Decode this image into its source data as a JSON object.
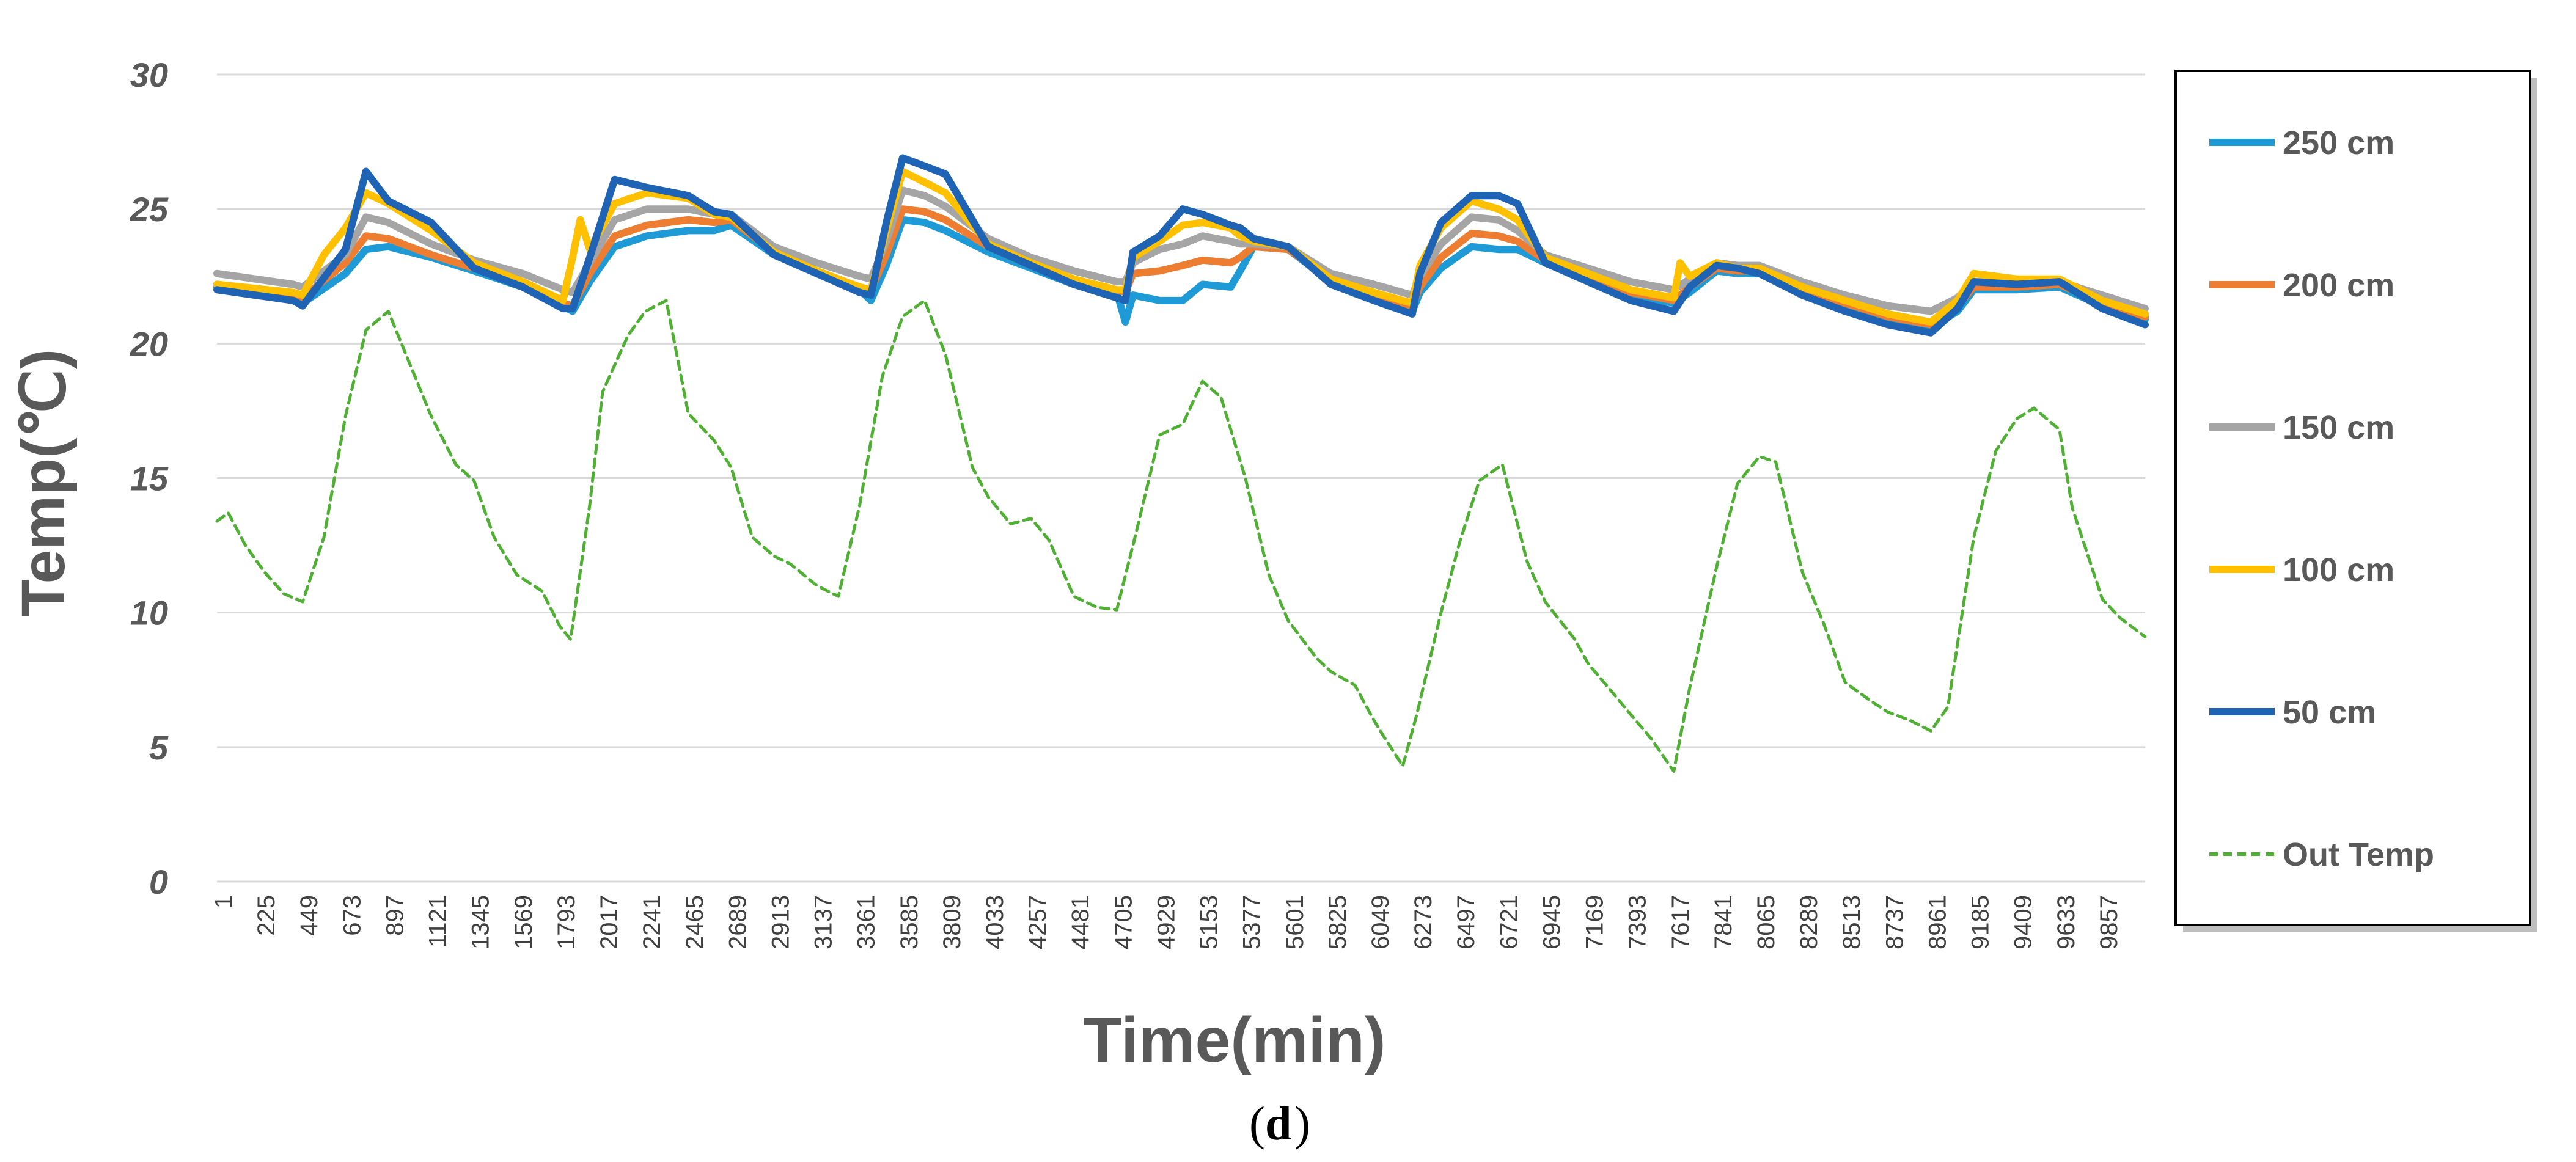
{
  "chart_data": {
    "type": "line",
    "title": "",
    "xlabel": "Time(min)",
    "ylabel": "Temp(℃)",
    "caption_letter": "d",
    "ylim": [
      0,
      30
    ],
    "xlim": [
      1,
      10081
    ],
    "yticks": [
      "0",
      "5",
      "10",
      "15",
      "20",
      "25",
      "30"
    ],
    "xticks": [
      "1",
      "225",
      "449",
      "673",
      "897",
      "1121",
      "1345",
      "1569",
      "1793",
      "2017",
      "2241",
      "2465",
      "2689",
      "2913",
      "3137",
      "3361",
      "3585",
      "3809",
      "4033",
      "4257",
      "4481",
      "4705",
      "4929",
      "5153",
      "5377",
      "5601",
      "5825",
      "6049",
      "6273",
      "6497",
      "6721",
      "6945",
      "7169",
      "7393",
      "7617",
      "7841",
      "8065",
      "8289",
      "8513",
      "8737",
      "8961",
      "9185",
      "9409",
      "9633",
      "9857"
    ],
    "grid": true,
    "legend_position": "right",
    "series": [
      {
        "name": "250 cm",
        "color": "#1E9BD7",
        "dash": false,
        "x": [
          1,
          400,
          449,
          673,
          780,
          897,
          1121,
          1345,
          1600,
          1810,
          1860,
          1950,
          2080,
          2250,
          2465,
          2600,
          2689,
          2913,
          3137,
          3361,
          3420,
          3500,
          3585,
          3700,
          3809,
          4033,
          4257,
          4481,
          4705,
          4750,
          4790,
          4929,
          5050,
          5153,
          5300,
          5350,
          5420,
          5601,
          5825,
          6049,
          6250,
          6290,
          6400,
          6560,
          6700,
          6800,
          6945,
          7169,
          7393,
          7617,
          7700,
          7841,
          7950,
          8065,
          8289,
          8513,
          8737,
          8961,
          9100,
          9185,
          9409,
          9633,
          9857,
          10081
        ],
        "y": [
          22.1,
          21.7,
          21.5,
          22.6,
          23.5,
          23.6,
          23.2,
          22.7,
          22.1,
          21.4,
          21.2,
          22.3,
          23.6,
          24.0,
          24.2,
          24.2,
          24.4,
          23.3,
          22.6,
          22.0,
          21.6,
          22.9,
          24.6,
          24.5,
          24.2,
          23.4,
          22.8,
          22.2,
          21.9,
          20.8,
          21.8,
          21.6,
          21.6,
          22.2,
          22.1,
          22.7,
          23.6,
          23.5,
          22.3,
          21.7,
          21.2,
          21.9,
          22.8,
          23.6,
          23.5,
          23.5,
          23.0,
          22.4,
          21.8,
          21.5,
          21.9,
          22.7,
          22.6,
          22.6,
          21.9,
          21.4,
          20.9,
          20.6,
          21.2,
          22.0,
          22.0,
          22.1,
          21.4,
          20.9
        ]
      },
      {
        "name": "200 cm",
        "color": "#ED7D31",
        "dash": false,
        "x": [
          1,
          400,
          449,
          673,
          780,
          897,
          1121,
          1345,
          1600,
          1810,
          1860,
          1950,
          2080,
          2250,
          2465,
          2600,
          2689,
          2913,
          3137,
          3361,
          3420,
          3500,
          3585,
          3700,
          3809,
          4033,
          4257,
          4481,
          4705,
          4750,
          4790,
          4929,
          5050,
          5153,
          5300,
          5350,
          5420,
          5601,
          5825,
          6049,
          6250,
          6290,
          6400,
          6560,
          6700,
          6800,
          6945,
          7169,
          7393,
          7617,
          7700,
          7841,
          7950,
          8065,
          8289,
          8513,
          8737,
          8961,
          9100,
          9185,
          9409,
          9633,
          9857,
          10081
        ],
        "y": [
          22.2,
          21.8,
          21.7,
          23.0,
          24.0,
          23.9,
          23.3,
          22.8,
          22.2,
          21.5,
          21.4,
          22.6,
          24.0,
          24.4,
          24.6,
          24.5,
          24.6,
          23.4,
          22.7,
          22.1,
          22.0,
          23.3,
          25.0,
          24.9,
          24.6,
          23.6,
          22.9,
          22.3,
          22.0,
          21.9,
          22.6,
          22.7,
          22.9,
          23.1,
          23.0,
          23.2,
          23.6,
          23.5,
          22.4,
          21.8,
          21.4,
          22.1,
          23.2,
          24.1,
          24.0,
          23.8,
          23.1,
          22.5,
          21.9,
          21.6,
          22.1,
          22.8,
          22.7,
          22.7,
          22.0,
          21.5,
          21.0,
          20.7,
          21.4,
          22.1,
          22.1,
          22.2,
          21.5,
          21.0
        ]
      },
      {
        "name": "150 cm",
        "color": "#A5A5A5",
        "dash": false,
        "x": [
          1,
          400,
          449,
          673,
          780,
          897,
          1121,
          1345,
          1600,
          1810,
          1860,
          1950,
          2080,
          2250,
          2465,
          2600,
          2689,
          2913,
          3137,
          3361,
          3420,
          3500,
          3585,
          3700,
          3809,
          4033,
          4257,
          4481,
          4705,
          4750,
          4790,
          4929,
          5050,
          5153,
          5300,
          5350,
          5420,
          5601,
          5825,
          6049,
          6250,
          6290,
          6400,
          6560,
          6700,
          6800,
          6945,
          7169,
          7393,
          7617,
          7700,
          7841,
          7950,
          8065,
          8289,
          8513,
          8737,
          8961,
          9100,
          9185,
          9409,
          9633,
          9857,
          10081
        ],
        "y": [
          22.6,
          22.2,
          22.1,
          23.3,
          24.7,
          24.5,
          23.7,
          23.1,
          22.6,
          22.0,
          21.9,
          23.0,
          24.6,
          25.0,
          25.0,
          24.8,
          24.8,
          23.6,
          23.0,
          22.5,
          22.4,
          23.8,
          25.7,
          25.5,
          25.1,
          23.9,
          23.2,
          22.7,
          22.3,
          22.3,
          23.0,
          23.5,
          23.7,
          24.0,
          23.8,
          23.7,
          23.7,
          23.6,
          22.6,
          22.2,
          21.8,
          22.5,
          23.7,
          24.7,
          24.6,
          24.2,
          23.3,
          22.8,
          22.3,
          22.0,
          22.4,
          23.0,
          22.9,
          22.9,
          22.3,
          21.8,
          21.4,
          21.2,
          21.7,
          22.3,
          22.3,
          22.3,
          21.8,
          21.3
        ]
      },
      {
        "name": "100 cm",
        "color": "#FFC000",
        "dash": false,
        "x": [
          1,
          400,
          449,
          560,
          673,
          780,
          897,
          1121,
          1345,
          1600,
          1810,
          1860,
          1900,
          1950,
          2080,
          2250,
          2465,
          2600,
          2689,
          2913,
          3137,
          3361,
          3420,
          3500,
          3585,
          3700,
          3809,
          4033,
          4257,
          4481,
          4705,
          4750,
          4790,
          4929,
          5050,
          5153,
          5300,
          5350,
          5420,
          5601,
          5825,
          6049,
          6250,
          6290,
          6400,
          6560,
          6700,
          6800,
          6945,
          7169,
          7393,
          7617,
          7650,
          7700,
          7841,
          7950,
          8065,
          8289,
          8513,
          8737,
          8961,
          9100,
          9185,
          9409,
          9633,
          9857,
          10081
        ],
        "y": [
          22.2,
          21.9,
          21.8,
          23.3,
          24.3,
          25.6,
          25.2,
          24.2,
          23.0,
          22.3,
          21.6,
          23.2,
          24.6,
          23.5,
          25.2,
          25.6,
          25.4,
          24.8,
          24.7,
          23.4,
          22.7,
          22.1,
          22.0,
          24.2,
          26.4,
          26.0,
          25.6,
          23.7,
          23.0,
          22.4,
          22.0,
          22.0,
          23.2,
          23.8,
          24.4,
          24.5,
          24.3,
          24.0,
          23.8,
          23.6,
          22.4,
          21.9,
          21.5,
          22.9,
          24.3,
          25.3,
          25.0,
          24.6,
          23.2,
          22.6,
          22.0,
          21.7,
          23.0,
          22.5,
          23.0,
          22.8,
          22.8,
          22.1,
          21.6,
          21.1,
          20.8,
          21.6,
          22.6,
          22.4,
          22.4,
          21.6,
          21.1
        ]
      },
      {
        "name": "50 cm",
        "color": "#1F64B4",
        "dash": false,
        "x": [
          1,
          400,
          449,
          673,
          780,
          897,
          1121,
          1345,
          1600,
          1810,
          1860,
          1950,
          2080,
          2250,
          2465,
          2600,
          2689,
          2913,
          3137,
          3361,
          3420,
          3500,
          3585,
          3700,
          3809,
          4033,
          4257,
          4481,
          4705,
          4750,
          4790,
          4929,
          5050,
          5153,
          5300,
          5350,
          5420,
          5601,
          5825,
          6049,
          6250,
          6290,
          6400,
          6560,
          6700,
          6800,
          6945,
          7169,
          7393,
          7617,
          7700,
          7841,
          7950,
          8065,
          8289,
          8513,
          8737,
          8961,
          9100,
          9185,
          9409,
          9633,
          9857,
          10081
        ],
        "y": [
          22.0,
          21.6,
          21.4,
          23.5,
          26.4,
          25.3,
          24.5,
          22.8,
          22.1,
          21.3,
          21.3,
          23.2,
          26.1,
          25.8,
          25.5,
          24.9,
          24.8,
          23.3,
          22.6,
          21.9,
          21.8,
          24.5,
          26.9,
          26.6,
          26.3,
          23.6,
          22.9,
          22.2,
          21.7,
          21.6,
          23.4,
          24.0,
          25.0,
          24.8,
          24.4,
          24.3,
          23.9,
          23.6,
          22.2,
          21.6,
          21.1,
          22.6,
          24.5,
          25.5,
          25.5,
          25.2,
          23.0,
          22.3,
          21.6,
          21.2,
          22.1,
          22.9,
          22.8,
          22.6,
          21.8,
          21.2,
          20.7,
          20.4,
          21.3,
          22.3,
          22.2,
          22.3,
          21.3,
          20.7
        ]
      },
      {
        "name": "Out Temp",
        "color": "#4FB034",
        "dash": true,
        "x": [
          1,
          60,
          150,
          250,
          350,
          449,
          560,
          673,
          780,
          897,
          1000,
          1121,
          1250,
          1345,
          1450,
          1569,
          1700,
          1793,
          1850,
          1950,
          2017,
          2150,
          2241,
          2350,
          2465,
          2600,
          2689,
          2800,
          2913,
          3000,
          3137,
          3250,
          3361,
          3480,
          3585,
          3700,
          3809,
          3950,
          4033,
          4150,
          4257,
          4350,
          4481,
          4600,
          4705,
          4800,
          4929,
          5050,
          5153,
          5250,
          5377,
          5500,
          5601,
          5750,
          5825,
          5950,
          6049,
          6100,
          6200,
          6273,
          6400,
          6497,
          6600,
          6721,
          6850,
          6945,
          7100,
          7169,
          7300,
          7393,
          7500,
          7617,
          7700,
          7841,
          7950,
          8065,
          8150,
          8289,
          8400,
          8513,
          8650,
          8737,
          8850,
          8961,
          9050,
          9185,
          9300,
          9409,
          9500,
          9633,
          9700,
          9857,
          9950,
          10081
        ],
        "y": [
          13.4,
          13.7,
          12.5,
          11.5,
          10.7,
          10.4,
          12.8,
          17.3,
          20.5,
          21.2,
          19.4,
          17.3,
          15.5,
          14.9,
          12.8,
          11.4,
          10.8,
          9.5,
          9.0,
          14.0,
          18.2,
          20.3,
          21.2,
          21.6,
          17.4,
          16.4,
          15.4,
          12.8,
          12.1,
          11.8,
          11.0,
          10.6,
          14.0,
          18.8,
          21.0,
          21.6,
          19.6,
          15.4,
          14.3,
          13.3,
          13.5,
          12.7,
          10.6,
          10.2,
          10.1,
          12.8,
          16.6,
          17.0,
          18.6,
          18.0,
          15.0,
          11.4,
          9.7,
          8.3,
          7.8,
          7.3,
          6.0,
          5.4,
          4.3,
          6.2,
          10.0,
          12.6,
          14.9,
          15.5,
          11.9,
          10.4,
          9.0,
          8.1,
          7.0,
          6.2,
          5.3,
          4.1,
          7.2,
          11.7,
          14.8,
          15.8,
          15.6,
          11.5,
          9.6,
          7.4,
          6.7,
          6.3,
          6.0,
          5.6,
          6.5,
          12.8,
          16.0,
          17.2,
          17.6,
          16.8,
          13.9,
          10.5,
          9.8,
          9.1
        ]
      }
    ]
  }
}
